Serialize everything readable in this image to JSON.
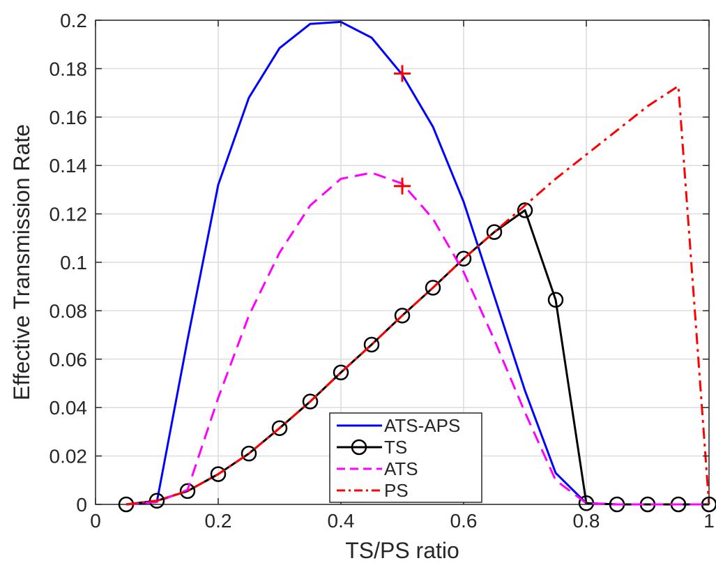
{
  "chart_data": {
    "type": "line",
    "title": "",
    "xlabel": "TS/PS ratio",
    "ylabel": "Effective Transmission Rate",
    "xlim": [
      0,
      1
    ],
    "ylim": [
      0,
      0.2
    ],
    "grid": true,
    "legend_position": "bottom-center",
    "x_ticks": [
      0,
      0.2,
      0.4,
      0.6,
      0.8,
      1
    ],
    "x_tick_labels": [
      "0",
      "0.2",
      "0.4",
      "0.6",
      "0.8",
      "1"
    ],
    "y_ticks": [
      0,
      0.02,
      0.04,
      0.06,
      0.08,
      0.1,
      0.12,
      0.14,
      0.16,
      0.18,
      0.2
    ],
    "y_tick_labels": [
      "0",
      "0.02",
      "0.04",
      "0.06",
      "0.08",
      "0.1",
      "0.12",
      "0.14",
      "0.16",
      "0.18",
      "0.2"
    ],
    "series": [
      {
        "name": "ATS-APS",
        "color": "#0000ff",
        "style": "solid",
        "marker": "none",
        "x": [
          0.05,
          0.1,
          0.15,
          0.2,
          0.25,
          0.3,
          0.35,
          0.4,
          0.45,
          0.5,
          0.55,
          0.6,
          0.65,
          0.7,
          0.75,
          0.8,
          0.85,
          0.9,
          0.95,
          1.0
        ],
        "y": [
          0,
          0.001,
          0.068,
          0.132,
          0.168,
          0.1885,
          0.1985,
          0.1993,
          0.1928,
          0.1775,
          0.156,
          0.125,
          0.086,
          0.047,
          0.013,
          0.0005,
          0,
          0,
          0,
          0
        ]
      },
      {
        "name": "TS",
        "color": "#000000",
        "style": "solid",
        "marker": "circle",
        "x": [
          0.05,
          0.1,
          0.15,
          0.2,
          0.25,
          0.3,
          0.35,
          0.4,
          0.45,
          0.5,
          0.55,
          0.6,
          0.65,
          0.7,
          0.75,
          0.8,
          0.85,
          0.9,
          0.95,
          1.0
        ],
        "y": [
          0,
          0.0015,
          0.0055,
          0.0125,
          0.021,
          0.0315,
          0.0425,
          0.0545,
          0.066,
          0.078,
          0.0895,
          0.1015,
          0.1125,
          0.1215,
          0.0845,
          0.0005,
          0,
          0,
          0,
          0
        ]
      },
      {
        "name": "ATS",
        "color": "#ff00ff",
        "style": "dashed",
        "marker": "none",
        "x": [
          0.05,
          0.1,
          0.15,
          0.2,
          0.25,
          0.3,
          0.35,
          0.4,
          0.45,
          0.5,
          0.55,
          0.6,
          0.65,
          0.7,
          0.75,
          0.8,
          0.85,
          0.9,
          0.95,
          1.0
        ],
        "y": [
          0,
          0.001,
          0.006,
          0.044,
          0.078,
          0.104,
          0.1235,
          0.1345,
          0.137,
          0.1325,
          0.118,
          0.096,
          0.068,
          0.038,
          0.01,
          0.0005,
          0,
          0,
          0,
          0
        ]
      },
      {
        "name": "PS",
        "color": "#ff0000",
        "style": "dashdot",
        "marker": "none",
        "x": [
          0.05,
          0.1,
          0.15,
          0.2,
          0.25,
          0.3,
          0.35,
          0.4,
          0.45,
          0.5,
          0.55,
          0.6,
          0.65,
          0.7,
          0.75,
          0.8,
          0.85,
          0.9,
          0.95,
          1.0
        ],
        "y": [
          0,
          0.0015,
          0.0055,
          0.0125,
          0.021,
          0.0315,
          0.0425,
          0.0545,
          0.066,
          0.078,
          0.0895,
          0.1015,
          0.1125,
          0.1235,
          0.1345,
          0.1445,
          0.1545,
          0.1645,
          0.1728,
          0
        ]
      }
    ],
    "annotations": [
      {
        "marker": "plus",
        "color": "#ff0000",
        "x": 0.5,
        "y": 0.178
      },
      {
        "marker": "plus",
        "color": "#ff0000",
        "x": 0.5,
        "y": 0.1315
      }
    ]
  }
}
